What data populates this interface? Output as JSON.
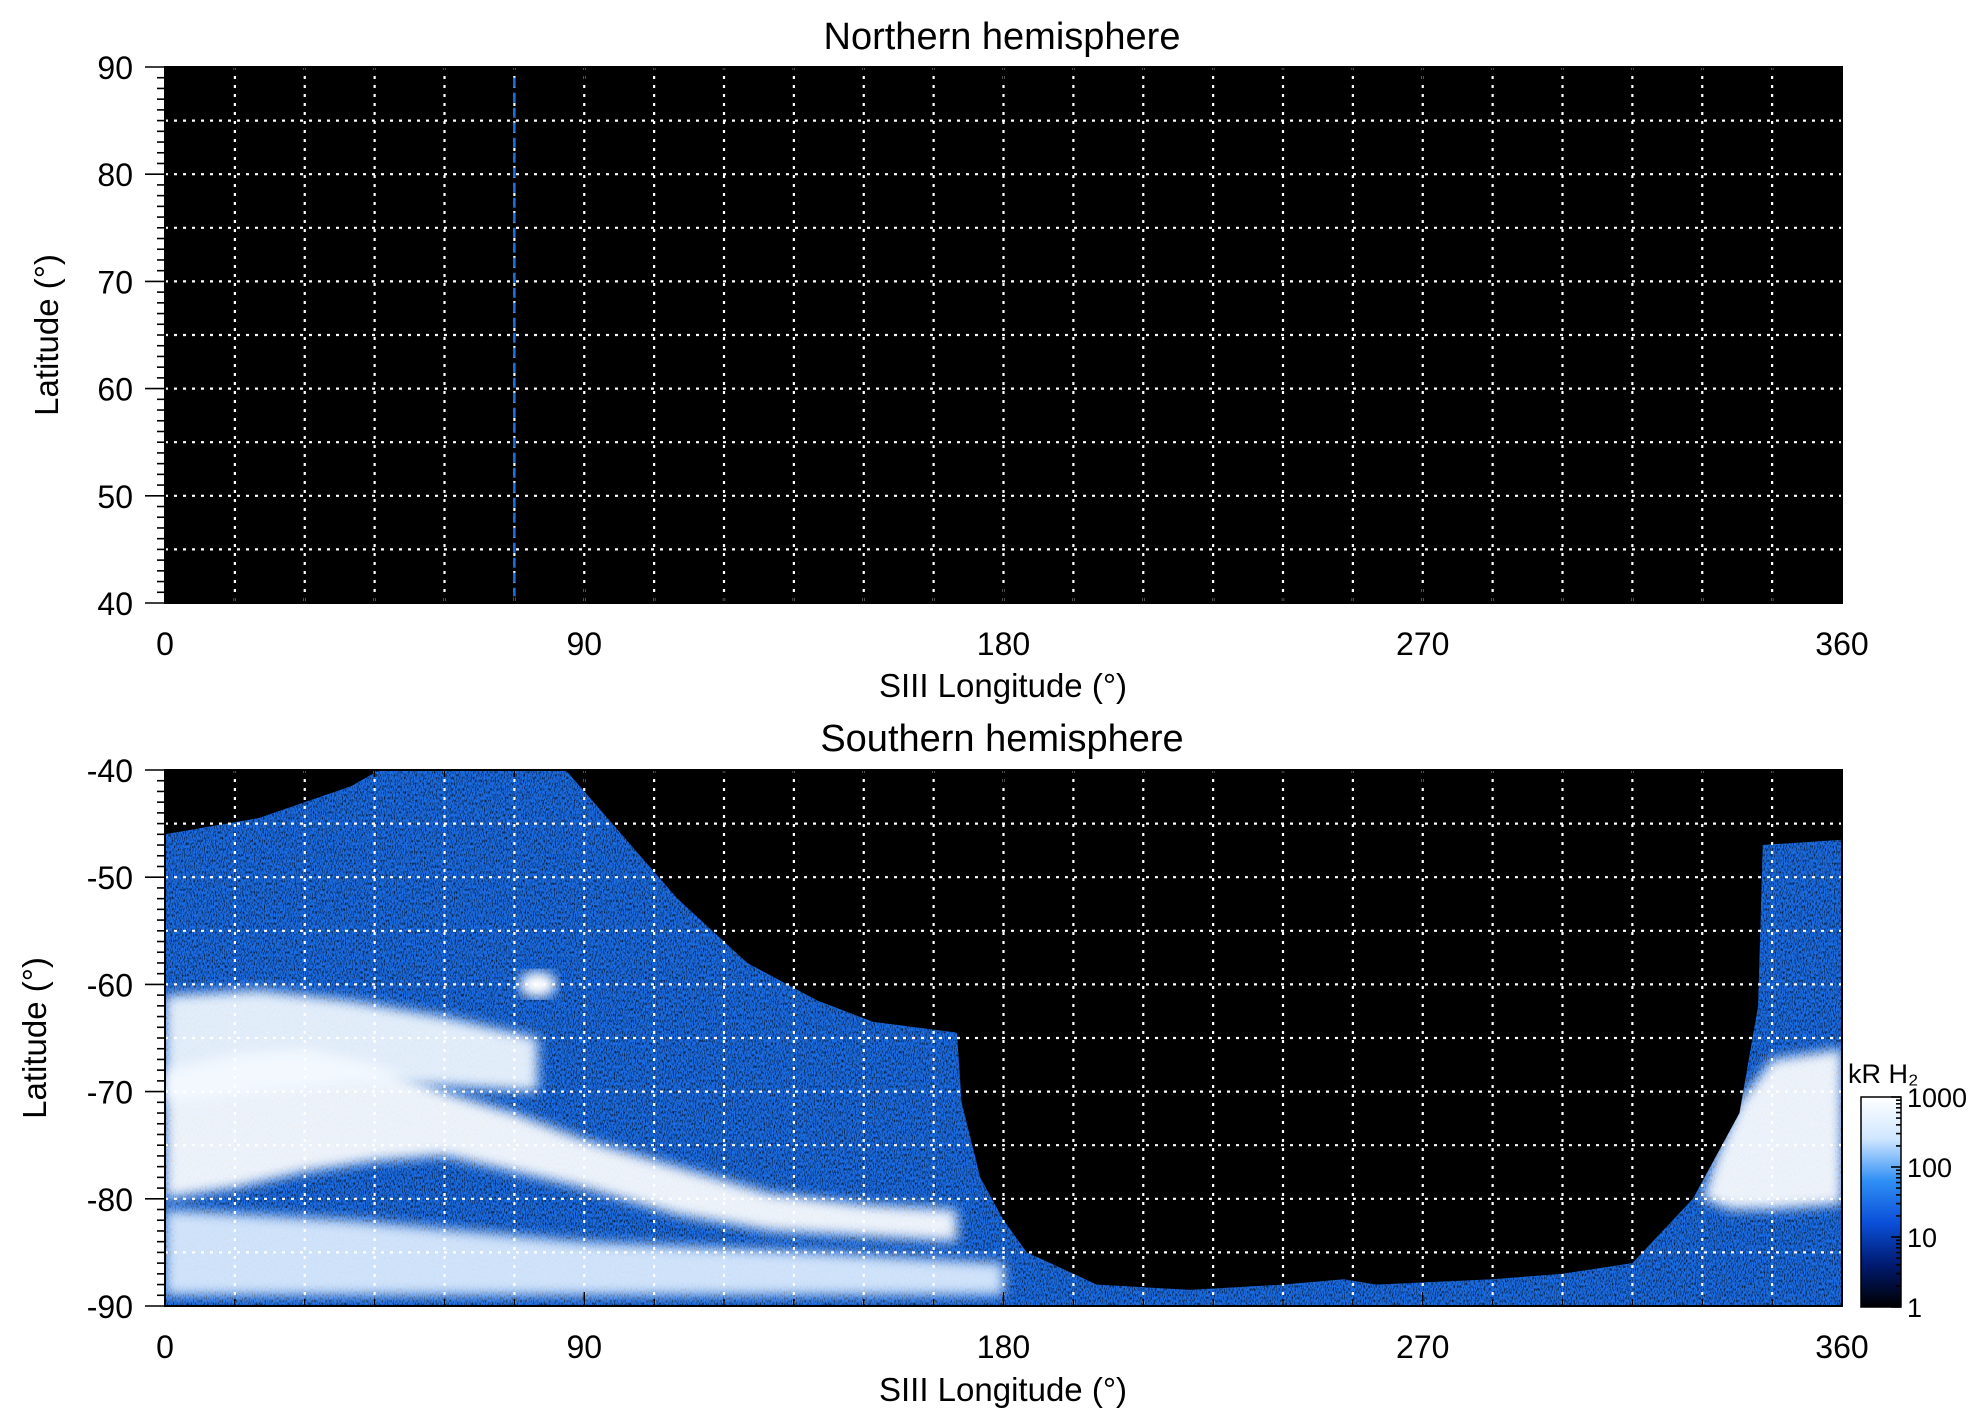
{
  "chart_data": [
    {
      "type": "heatmap",
      "title": "Northern hemisphere",
      "xlabel": "SIII Longitude (°)",
      "ylabel": "Latitude (°)",
      "xlim": [
        0,
        360
      ],
      "ylim": [
        40,
        90
      ],
      "xticks": [
        0,
        90,
        180,
        270,
        360
      ],
      "xtick_labels": [
        "0",
        "90",
        "180",
        "270",
        "360"
      ],
      "yticks": [
        40,
        50,
        60,
        70,
        80,
        90
      ],
      "ytick_labels": [
        "40",
        "50",
        "60",
        "70",
        "80",
        "90"
      ],
      "grid": true,
      "grid_x_step": 15,
      "grid_y_step": 5,
      "background": "#000000",
      "marker_line": {
        "longitude": 75,
        "lat_range": [
          40,
          89
        ],
        "color": "#1e6fe0",
        "style": "dashed"
      },
      "emission": []
    },
    {
      "type": "heatmap",
      "title": "Southern hemisphere",
      "xlabel": "SIII Longitude (°)",
      "ylabel": "Latitude (°)",
      "xlim": [
        0,
        360
      ],
      "ylim": [
        -90,
        -40
      ],
      "xticks": [
        0,
        90,
        180,
        270,
        360
      ],
      "xtick_labels": [
        "0",
        "90",
        "180",
        "270",
        "360"
      ],
      "yticks": [
        -90,
        -80,
        -70,
        -60,
        -50,
        -40
      ],
      "ytick_labels": [
        "-90",
        "-80",
        "-70",
        "-60",
        "-50",
        "-40"
      ],
      "grid": true,
      "grid_x_step": 15,
      "grid_y_step": 5,
      "background": "#000000",
      "coverage_regions": [
        {
          "name": "coverage-left",
          "boundary": [
            [
              0,
              -46
            ],
            [
              20,
              -44.5
            ],
            [
              40,
              -41.5
            ],
            [
              46,
              -40
            ],
            [
              86,
              -40
            ],
            [
              98,
              -46
            ],
            [
              110,
              -52
            ],
            [
              125,
              -58
            ],
            [
              140,
              -61.5
            ],
            [
              152,
              -63.5
            ],
            [
              170,
              -64.5
            ],
            [
              171,
              -71
            ],
            [
              175,
              -78
            ],
            [
              180,
              -82
            ],
            [
              185,
              -85
            ],
            [
              195,
              -87
            ],
            [
              200,
              -88
            ],
            [
              220,
              -88.5
            ],
            [
              240,
              -88
            ],
            [
              253,
              -87.5
            ],
            [
              260,
              -88
            ],
            [
              285,
              -87.5
            ],
            [
              300,
              -87
            ],
            [
              315,
              -86
            ],
            [
              328,
              -80
            ],
            [
              338,
              -72
            ],
            [
              342,
              -62
            ],
            [
              343,
              -47
            ],
            [
              360,
              -46.5
            ],
            [
              360,
              -90
            ],
            [
              0,
              -90
            ]
          ],
          "level_kR": 30
        }
      ],
      "emission": [
        {
          "name": "main-oval-left",
          "kind": "band",
          "level_kR": 1500,
          "upper": [
            [
              0,
              -68
            ],
            [
              15,
              -66.5
            ],
            [
              30,
              -66
            ],
            [
              45,
              -67.5
            ],
            [
              60,
              -70
            ],
            [
              75,
              -72
            ],
            [
              90,
              -74.5
            ],
            [
              110,
              -77
            ],
            [
              130,
              -79.5
            ],
            [
              150,
              -80.5
            ],
            [
              170,
              -81
            ]
          ],
          "lower": [
            [
              170,
              -84
            ],
            [
              150,
              -83.5
            ],
            [
              130,
              -83
            ],
            [
              110,
              -81.5
            ],
            [
              90,
              -79
            ],
            [
              75,
              -77.5
            ],
            [
              60,
              -76
            ],
            [
              45,
              -76.5
            ],
            [
              30,
              -77.5
            ],
            [
              15,
              -79
            ],
            [
              0,
              -80
            ]
          ]
        },
        {
          "name": "bright-region-left",
          "kind": "band",
          "level_kR": 700,
          "upper": [
            [
              0,
              -61
            ],
            [
              20,
              -60.5
            ],
            [
              40,
              -61.5
            ],
            [
              60,
              -63
            ],
            [
              80,
              -65
            ]
          ],
          "lower": [
            [
              80,
              -70
            ],
            [
              60,
              -69.5
            ],
            [
              40,
              -69
            ],
            [
              20,
              -70
            ],
            [
              0,
              -71
            ]
          ]
        },
        {
          "name": "bright-spot",
          "kind": "spot",
          "level_kR": 1500,
          "lon": 80,
          "lat": -60,
          "rx": 4,
          "ry": 1.2
        },
        {
          "name": "main-oval-right",
          "kind": "band",
          "level_kR": 1500,
          "upper": [
            [
              360,
              -66
            ],
            [
              345,
              -67
            ],
            [
              338,
              -71
            ],
            [
              333,
              -76
            ],
            [
              330,
              -80
            ]
          ],
          "lower": [
            [
              330,
              -80
            ],
            [
              336,
              -81
            ],
            [
              345,
              -81
            ],
            [
              360,
              -80.5
            ]
          ]
        },
        {
          "name": "polar-band-left",
          "kind": "band",
          "level_kR": 400,
          "upper": [
            [
              0,
              -81
            ],
            [
              40,
              -82
            ],
            [
              90,
              -84
            ],
            [
              140,
              -85
            ],
            [
              180,
              -86
            ]
          ],
          "lower": [
            [
              180,
              -89
            ],
            [
              90,
              -89
            ],
            [
              0,
              -89
            ]
          ]
        }
      ]
    }
  ],
  "colorbar": {
    "title": "kR H₂",
    "scale": "log",
    "range": [
      1,
      1000
    ],
    "ticks": [
      1,
      10,
      100,
      1000
    ],
    "tick_labels": [
      "1",
      "10",
      "100",
      "1000"
    ],
    "colors": [
      "#000000",
      "#001a70",
      "#0a4fd8",
      "#2f8ff5",
      "#cfe6ff",
      "#ffffff"
    ]
  }
}
